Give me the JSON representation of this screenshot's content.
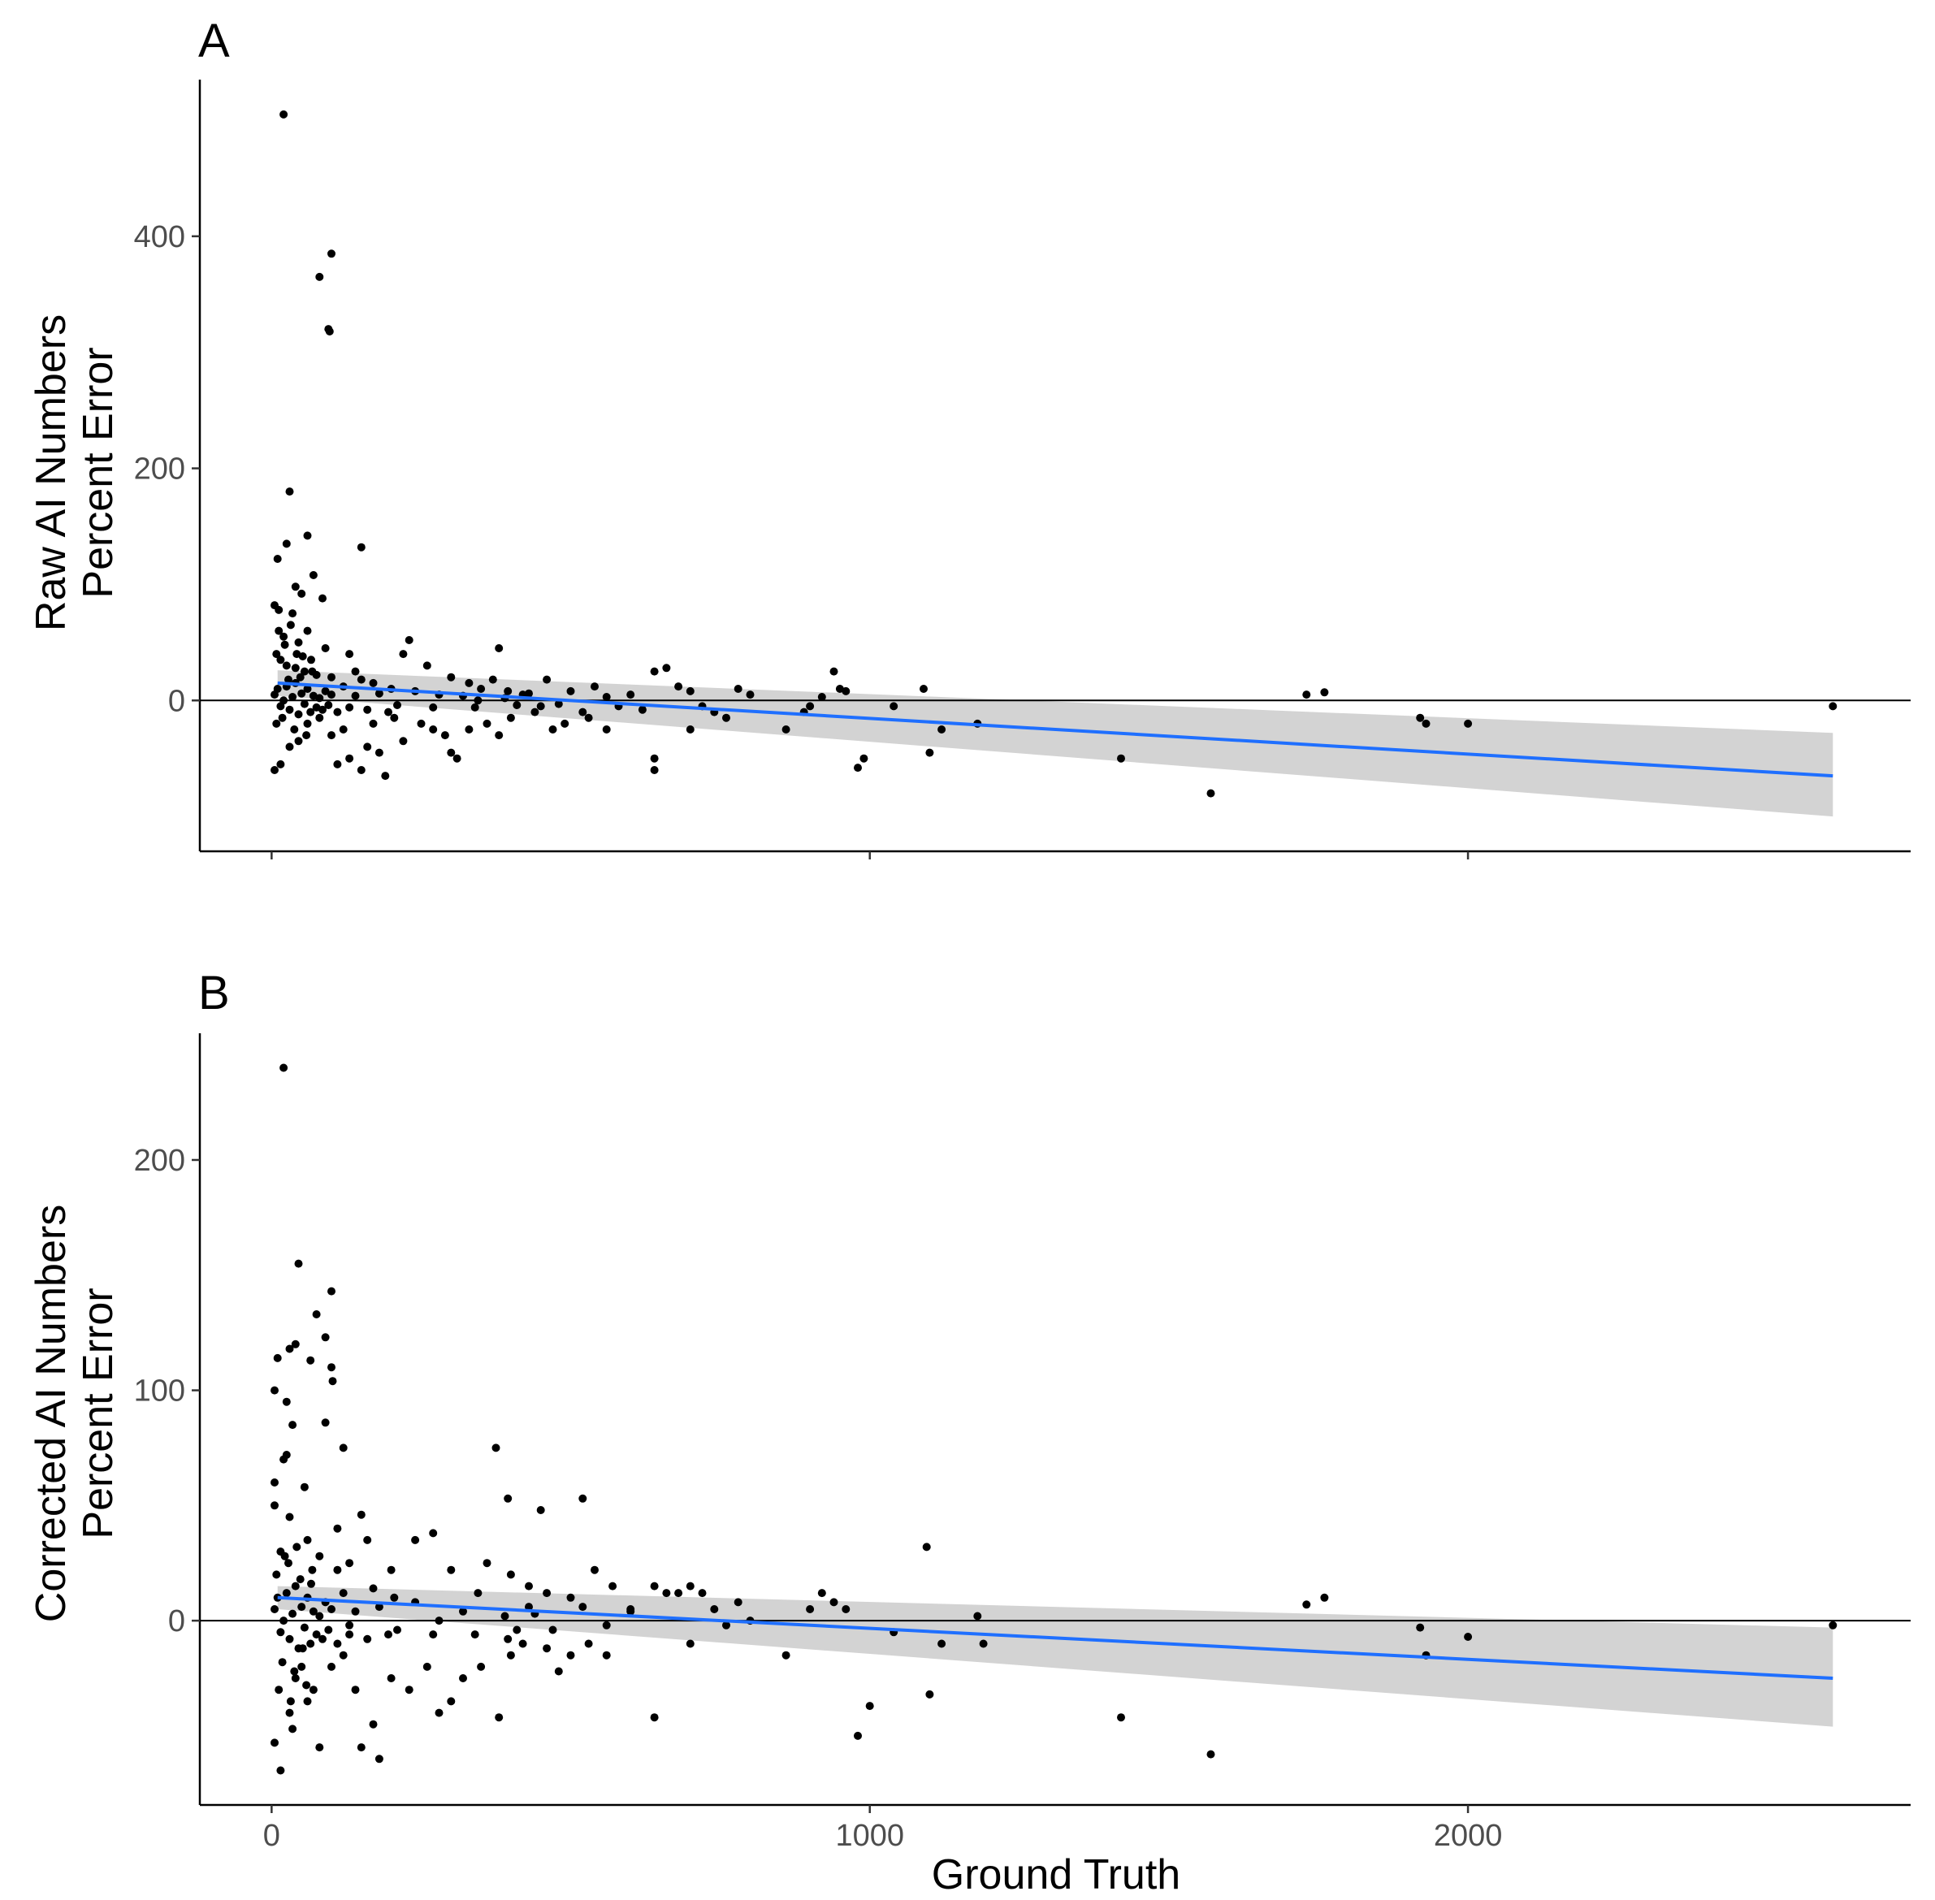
{
  "chart_data": [
    {
      "panel": "A",
      "type": "scatter",
      "title": "",
      "xlabel": "",
      "ylabel_lines": [
        "Raw AI Numbers",
        "Percent Error"
      ],
      "xlim": [
        -120,
        2740
      ],
      "ylim": [
        -130,
        535
      ],
      "xticks": [
        0,
        1000,
        2000
      ],
      "xtick_labels": [],
      "yticks": [
        0,
        200,
        400
      ],
      "ytick_labels": [
        "0",
        "200",
        "400"
      ],
      "hline": 0,
      "fit": {
        "x0": 10,
        "y0": 15,
        "x1": 2610,
        "y1": -65,
        "band_lo": [
          4,
          -100
        ],
        "band_hi": [
          26,
          -28
        ]
      },
      "points": [
        [
          20,
          505
        ],
        [
          100,
          385
        ],
        [
          80,
          365
        ],
        [
          95,
          320
        ],
        [
          97,
          318
        ],
        [
          30,
          180
        ],
        [
          150,
          132
        ],
        [
          60,
          142
        ],
        [
          25,
          135
        ],
        [
          10,
          122
        ],
        [
          70,
          108
        ],
        [
          40,
          98
        ],
        [
          50,
          92
        ],
        [
          85,
          88
        ],
        [
          5,
          82
        ],
        [
          12,
          78
        ],
        [
          35,
          75
        ],
        [
          60,
          60
        ],
        [
          20,
          55
        ],
        [
          45,
          50
        ],
        [
          90,
          45
        ],
        [
          130,
          40
        ],
        [
          8,
          40
        ],
        [
          15,
          35
        ],
        [
          25,
          30
        ],
        [
          40,
          28
        ],
        [
          55,
          25
        ],
        [
          75,
          22
        ],
        [
          100,
          20
        ],
        [
          140,
          25
        ],
        [
          150,
          18
        ],
        [
          170,
          15
        ],
        [
          200,
          10
        ],
        [
          230,
          52
        ],
        [
          260,
          30
        ],
        [
          220,
          40
        ],
        [
          300,
          20
        ],
        [
          330,
          15
        ],
        [
          350,
          10
        ],
        [
          370,
          18
        ],
        [
          380,
          45
        ],
        [
          420,
          5
        ],
        [
          450,
          -5
        ],
        [
          460,
          18
        ],
        [
          480,
          -3
        ],
        [
          500,
          8
        ],
        [
          520,
          -10
        ],
        [
          540,
          12
        ],
        [
          560,
          3
        ],
        [
          580,
          -5
        ],
        [
          600,
          5
        ],
        [
          620,
          -8
        ],
        [
          640,
          25
        ],
        [
          660,
          28
        ],
        [
          680,
          12
        ],
        [
          700,
          8
        ],
        [
          720,
          -5
        ],
        [
          740,
          -10
        ],
        [
          760,
          -15
        ],
        [
          780,
          10
        ],
        [
          800,
          5
        ],
        [
          640,
          -50
        ],
        [
          640,
          -60
        ],
        [
          700,
          -25
        ],
        [
          860,
          -25
        ],
        [
          890,
          -10
        ],
        [
          900,
          -5
        ],
        [
          920,
          3
        ],
        [
          940,
          25
        ],
        [
          950,
          10
        ],
        [
          960,
          8
        ],
        [
          980,
          -58
        ],
        [
          990,
          -50
        ],
        [
          1040,
          -5
        ],
        [
          1090,
          10
        ],
        [
          1100,
          -45
        ],
        [
          1120,
          -25
        ],
        [
          1180,
          -20
        ],
        [
          1420,
          -50
        ],
        [
          1570,
          -80
        ],
        [
          1730,
          5
        ],
        [
          1760,
          7
        ],
        [
          1920,
          -15
        ],
        [
          1930,
          -20
        ],
        [
          2000,
          -20
        ],
        [
          2610,
          -5
        ],
        [
          5,
          -60
        ],
        [
          15,
          -55
        ],
        [
          30,
          -40
        ],
        [
          45,
          -35
        ],
        [
          60,
          -20
        ],
        [
          80,
          -15
        ],
        [
          100,
          -30
        ],
        [
          120,
          -25
        ],
        [
          150,
          -60
        ],
        [
          160,
          -40
        ],
        [
          180,
          -45
        ],
        [
          190,
          -65
        ],
        [
          220,
          -35
        ],
        [
          250,
          -20
        ],
        [
          270,
          -25
        ],
        [
          290,
          -30
        ],
        [
          300,
          -45
        ],
        [
          310,
          -50
        ],
        [
          330,
          -25
        ],
        [
          360,
          -20
        ],
        [
          380,
          -30
        ],
        [
          400,
          -15
        ],
        [
          440,
          -10
        ],
        [
          470,
          -25
        ],
        [
          490,
          -20
        ],
        [
          530,
          -15
        ],
        [
          560,
          -25
        ],
        [
          5,
          5
        ],
        [
          10,
          10
        ],
        [
          15,
          -5
        ],
        [
          20,
          0
        ],
        [
          25,
          12
        ],
        [
          30,
          -8
        ],
        [
          35,
          3
        ],
        [
          40,
          15
        ],
        [
          45,
          -12
        ],
        [
          50,
          6
        ],
        [
          55,
          -3
        ],
        [
          60,
          10
        ],
        [
          65,
          -10
        ],
        [
          70,
          4
        ],
        [
          75,
          -6
        ],
        [
          80,
          2
        ],
        [
          85,
          -8
        ],
        [
          90,
          8
        ],
        [
          95,
          -4
        ],
        [
          100,
          5
        ],
        [
          110,
          -10
        ],
        [
          120,
          12
        ],
        [
          130,
          -6
        ],
        [
          140,
          4
        ],
        [
          160,
          -8
        ],
        [
          180,
          6
        ],
        [
          210,
          -4
        ],
        [
          240,
          8
        ],
        [
          270,
          -6
        ],
        [
          320,
          4
        ],
        [
          340,
          -6
        ],
        [
          390,
          2
        ],
        [
          410,
          -4
        ],
        [
          430,
          6
        ],
        [
          8,
          -20
        ],
        [
          18,
          -15
        ],
        [
          28,
          18
        ],
        [
          38,
          -25
        ],
        [
          48,
          20
        ],
        [
          58,
          -30
        ],
        [
          68,
          25
        ],
        [
          12,
          60
        ],
        [
          22,
          48
        ],
        [
          32,
          65
        ],
        [
          42,
          40
        ],
        [
          52,
          38
        ],
        [
          66,
          35
        ],
        [
          110,
          -55
        ],
        [
          130,
          -50
        ],
        [
          170,
          -20
        ],
        [
          195,
          -10
        ],
        [
          205,
          -15
        ],
        [
          280,
          5
        ],
        [
          345,
          0
        ],
        [
          395,
          8
        ]
      ]
    },
    {
      "panel": "B",
      "type": "scatter",
      "title": "",
      "xlabel": "Ground Truth",
      "ylabel_lines": [
        "Corrected AI Numbers",
        "Percent Error"
      ],
      "xlim": [
        -120,
        2740
      ],
      "ylim": [
        -80,
        255
      ],
      "xticks": [
        0,
        1000,
        2000
      ],
      "xtick_labels": [
        "0",
        "1000",
        "2000"
      ],
      "yticks": [
        0,
        100,
        200
      ],
      "ytick_labels": [
        "0",
        "100",
        "200"
      ],
      "hline": 0,
      "fit": {
        "x0": 10,
        "y0": 10,
        "x1": 2610,
        "y1": -25,
        "band_lo": [
          5,
          -46
        ],
        "band_hi": [
          15,
          -3
        ]
      },
      "points": [
        [
          20,
          240
        ],
        [
          45,
          155
        ],
        [
          100,
          143
        ],
        [
          75,
          133
        ],
        [
          90,
          123
        ],
        [
          10,
          114
        ],
        [
          65,
          113
        ],
        [
          100,
          110
        ],
        [
          30,
          118
        ],
        [
          40,
          120
        ],
        [
          102,
          104
        ],
        [
          5,
          100
        ],
        [
          25,
          95
        ],
        [
          90,
          86
        ],
        [
          35,
          85
        ],
        [
          20,
          70
        ],
        [
          25,
          72
        ],
        [
          120,
          75
        ],
        [
          5,
          60
        ],
        [
          55,
          58
        ],
        [
          375,
          75
        ],
        [
          395,
          53
        ],
        [
          520,
          53
        ],
        [
          450,
          48
        ],
        [
          5,
          50
        ],
        [
          30,
          45
        ],
        [
          150,
          46
        ],
        [
          110,
          40
        ],
        [
          60,
          35
        ],
        [
          160,
          35
        ],
        [
          240,
          35
        ],
        [
          270,
          38
        ],
        [
          15,
          30
        ],
        [
          80,
          28
        ],
        [
          130,
          25
        ],
        [
          200,
          22
        ],
        [
          300,
          22
        ],
        [
          360,
          25
        ],
        [
          400,
          20
        ],
        [
          430,
          15
        ],
        [
          460,
          12
        ],
        [
          500,
          10
        ],
        [
          540,
          22
        ],
        [
          570,
          15
        ],
        [
          600,
          5
        ],
        [
          640,
          15
        ],
        [
          660,
          12
        ],
        [
          680,
          12
        ],
        [
          700,
          15
        ],
        [
          720,
          12
        ],
        [
          740,
          5
        ],
        [
          760,
          -2
        ],
        [
          780,
          8
        ],
        [
          800,
          0
        ],
        [
          860,
          -15
        ],
        [
          900,
          5
        ],
        [
          920,
          12
        ],
        [
          940,
          8
        ],
        [
          960,
          5
        ],
        [
          980,
          -50
        ],
        [
          1000,
          -37
        ],
        [
          1040,
          -5
        ],
        [
          1095,
          32
        ],
        [
          1100,
          -32
        ],
        [
          1120,
          -10
        ],
        [
          1180,
          2
        ],
        [
          1190,
          -10
        ],
        [
          1420,
          -42
        ],
        [
          1570,
          -58
        ],
        [
          1730,
          7
        ],
        [
          1760,
          10
        ],
        [
          1920,
          -3
        ],
        [
          1930,
          -15
        ],
        [
          2000,
          -7
        ],
        [
          2610,
          -2
        ],
        [
          5,
          -53
        ],
        [
          15,
          -65
        ],
        [
          30,
          -40
        ],
        [
          35,
          -47
        ],
        [
          40,
          -25
        ],
        [
          50,
          -20
        ],
        [
          60,
          -35
        ],
        [
          70,
          -30
        ],
        [
          80,
          -55
        ],
        [
          100,
          -20
        ],
        [
          120,
          -15
        ],
        [
          140,
          -30
        ],
        [
          150,
          -55
        ],
        [
          170,
          -45
        ],
        [
          180,
          -60
        ],
        [
          200,
          -25
        ],
        [
          230,
          -30
        ],
        [
          260,
          -20
        ],
        [
          280,
          -40
        ],
        [
          300,
          -35
        ],
        [
          320,
          -25
        ],
        [
          350,
          -20
        ],
        [
          380,
          -42
        ],
        [
          400,
          -15
        ],
        [
          420,
          -10
        ],
        [
          460,
          -12
        ],
        [
          480,
          -22
        ],
        [
          500,
          -15
        ],
        [
          530,
          -10
        ],
        [
          560,
          -15
        ],
        [
          640,
          -42
        ],
        [
          700,
          -10
        ],
        [
          5,
          5
        ],
        [
          10,
          10
        ],
        [
          15,
          -5
        ],
        [
          20,
          0
        ],
        [
          25,
          12
        ],
        [
          30,
          -8
        ],
        [
          35,
          3
        ],
        [
          40,
          15
        ],
        [
          45,
          -12
        ],
        [
          50,
          6
        ],
        [
          55,
          -3
        ],
        [
          60,
          10
        ],
        [
          65,
          -10
        ],
        [
          70,
          4
        ],
        [
          75,
          -6
        ],
        [
          80,
          2
        ],
        [
          85,
          -8
        ],
        [
          90,
          8
        ],
        [
          95,
          -4
        ],
        [
          100,
          5
        ],
        [
          110,
          -10
        ],
        [
          120,
          12
        ],
        [
          130,
          -6
        ],
        [
          140,
          4
        ],
        [
          160,
          -8
        ],
        [
          180,
          6
        ],
        [
          210,
          -4
        ],
        [
          240,
          8
        ],
        [
          270,
          -6
        ],
        [
          320,
          4
        ],
        [
          340,
          -6
        ],
        [
          390,
          2
        ],
        [
          410,
          -4
        ],
        [
          430,
          6
        ],
        [
          8,
          20
        ],
        [
          18,
          -18
        ],
        [
          28,
          25
        ],
        [
          38,
          -22
        ],
        [
          48,
          18
        ],
        [
          58,
          -28
        ],
        [
          68,
          22
        ],
        [
          12,
          -30
        ],
        [
          22,
          28
        ],
        [
          32,
          -35
        ],
        [
          42,
          32
        ],
        [
          52,
          -12
        ],
        [
          66,
          16
        ],
        [
          110,
          22
        ],
        [
          130,
          -2
        ],
        [
          170,
          14
        ],
        [
          195,
          -6
        ],
        [
          205,
          10
        ],
        [
          280,
          0
        ],
        [
          345,
          12
        ],
        [
          395,
          -8
        ],
        [
          440,
          3
        ],
        [
          470,
          -4
        ],
        [
          520,
          6
        ],
        [
          560,
          -2
        ],
        [
          600,
          4
        ]
      ]
    }
  ]
}
